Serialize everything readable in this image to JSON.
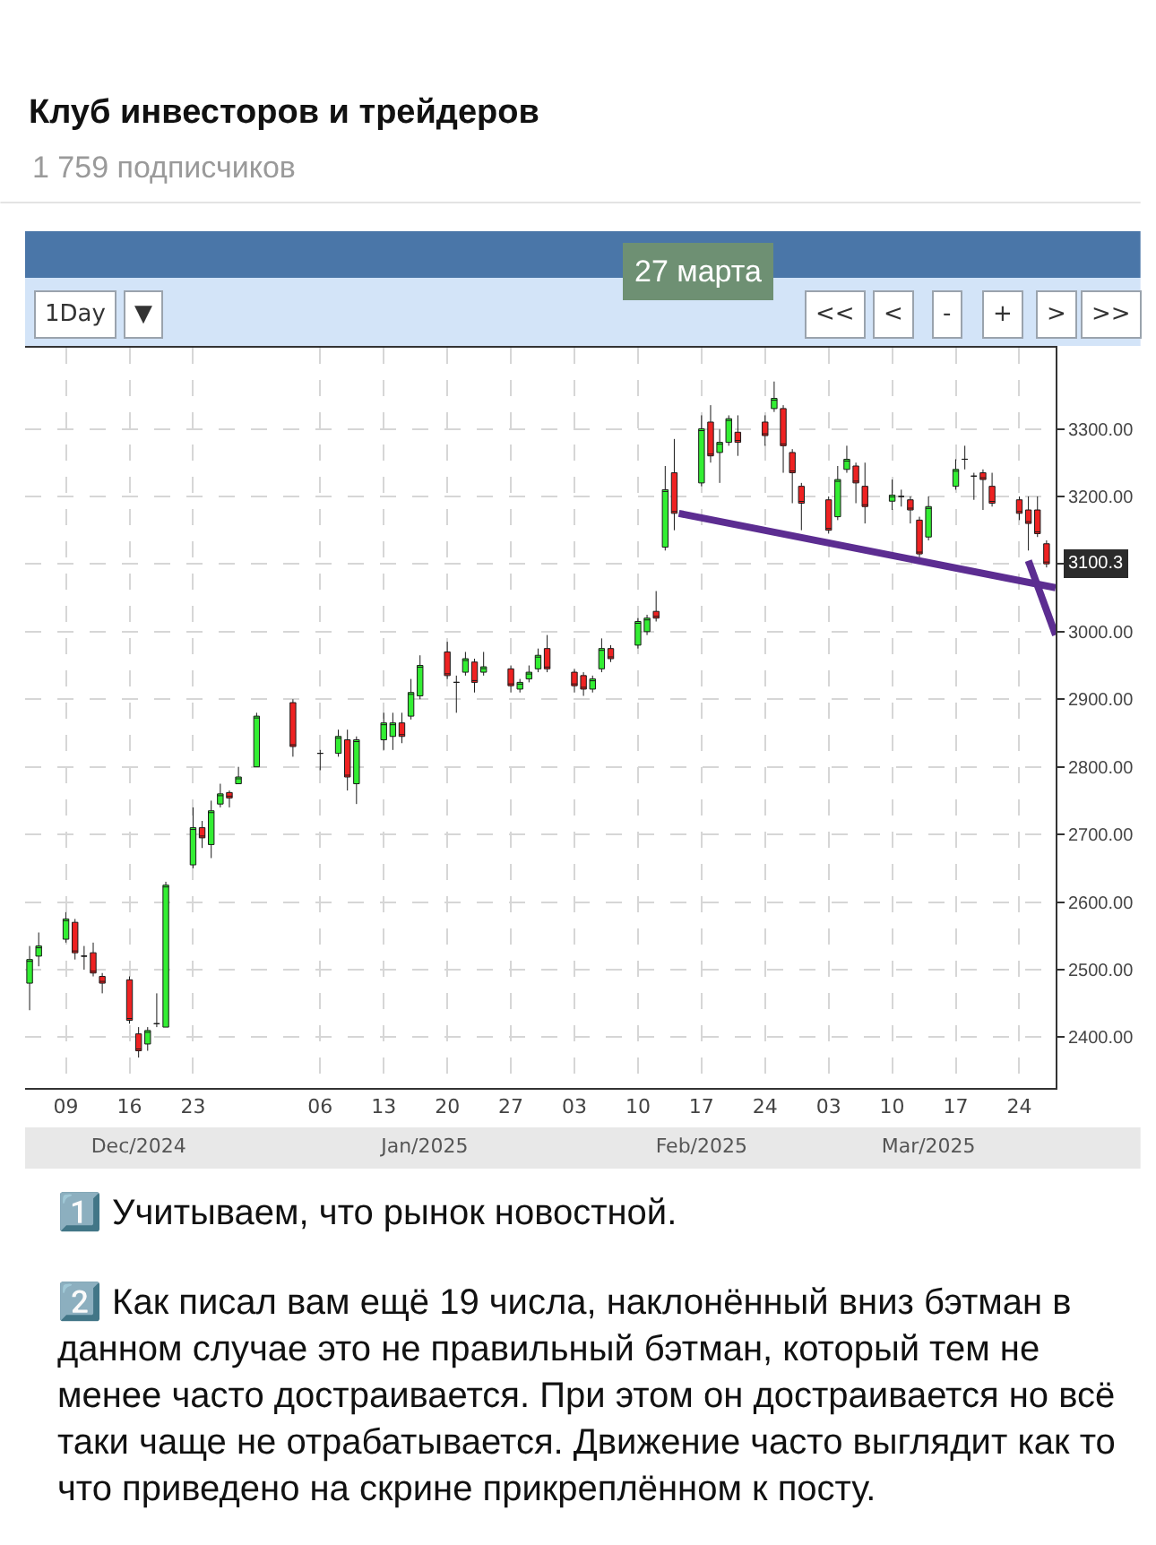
{
  "chart_data": {
    "type": "candlestick",
    "title": "Клуб инвесторов и трейдеров",
    "subtitle": "1 759 подписчиков",
    "x": [
      "2024-12-05",
      "2024-12-06",
      "2024-12-09",
      "2024-12-10",
      "2024-12-11",
      "2024-12-12",
      "2024-12-13",
      "2024-12-16",
      "2024-12-17",
      "2024-12-18",
      "2024-12-19",
      "2024-12-20",
      "2024-12-23",
      "2024-12-24",
      "2024-12-25",
      "2024-12-26",
      "2024-12-27",
      "2024-12-28",
      "2024-12-30",
      "2025-01-03",
      "2025-01-06",
      "2025-01-08",
      "2025-01-09",
      "2025-01-10",
      "2025-01-13",
      "2025-01-14",
      "2025-01-15",
      "2025-01-16",
      "2025-01-17",
      "2025-01-20",
      "2025-01-21",
      "2025-01-22",
      "2025-01-23",
      "2025-01-24",
      "2025-01-27",
      "2025-01-28",
      "2025-01-29",
      "2025-01-30",
      "2025-01-31",
      "2025-02-03",
      "2025-02-04",
      "2025-02-05",
      "2025-02-06",
      "2025-02-07",
      "2025-02-10",
      "2025-02-11",
      "2025-02-12",
      "2025-02-13",
      "2025-02-14",
      "2025-02-17",
      "2025-02-18",
      "2025-02-19",
      "2025-02-20",
      "2025-02-21",
      "2025-02-24",
      "2025-02-25",
      "2025-02-26",
      "2025-02-27",
      "2025-02-28",
      "2025-03-03",
      "2025-03-04",
      "2025-03-05",
      "2025-03-06",
      "2025-03-07",
      "2025-03-10",
      "2025-03-11",
      "2025-03-12",
      "2025-03-13",
      "2025-03-14",
      "2025-03-17",
      "2025-03-18",
      "2025-03-19",
      "2025-03-20",
      "2025-03-21",
      "2025-03-24",
      "2025-03-25",
      "2025-03-26",
      "2025-03-27"
    ],
    "ohlc": [
      [
        2480,
        2535,
        2440,
        2515
      ],
      [
        2520,
        2555,
        2505,
        2535
      ],
      [
        2545,
        2585,
        2540,
        2575
      ],
      [
        2570,
        2575,
        2515,
        2525
      ],
      [
        2520,
        2535,
        2500,
        2520
      ],
      [
        2525,
        2540,
        2490,
        2495
      ],
      [
        2490,
        2495,
        2465,
        2480
      ],
      [
        2485,
        2490,
        2420,
        2425
      ],
      [
        2405,
        2415,
        2370,
        2380
      ],
      [
        2390,
        2415,
        2380,
        2410
      ],
      [
        2420,
        2465,
        2415,
        2420
      ],
      [
        2415,
        2630,
        2415,
        2625
      ],
      [
        2655,
        2740,
        2650,
        2710
      ],
      [
        2710,
        2720,
        2680,
        2695
      ],
      [
        2685,
        2750,
        2665,
        2735
      ],
      [
        2745,
        2775,
        2740,
        2760
      ],
      [
        2762,
        2765,
        2740,
        2754
      ],
      [
        2775,
        2800,
        2775,
        2785
      ],
      [
        2800,
        2880,
        2800,
        2875
      ],
      [
        2895,
        2900,
        2815,
        2830
      ],
      [
        2820,
        2825,
        2795,
        2820
      ],
      [
        2820,
        2855,
        2815,
        2845
      ],
      [
        2840,
        2855,
        2765,
        2785
      ],
      [
        2775,
        2845,
        2745,
        2840
      ],
      [
        2840,
        2880,
        2825,
        2865
      ],
      [
        2845,
        2880,
        2825,
        2865
      ],
      [
        2865,
        2880,
        2835,
        2845
      ],
      [
        2875,
        2930,
        2870,
        2910
      ],
      [
        2905,
        2965,
        2900,
        2950
      ],
      [
        2970,
        2985,
        2930,
        2935
      ],
      [
        2925,
        2935,
        2880,
        2925
      ],
      [
        2940,
        2970,
        2935,
        2960
      ],
      [
        2955,
        2960,
        2910,
        2925
      ],
      [
        2940,
        2970,
        2935,
        2948
      ],
      [
        2945,
        2950,
        2910,
        2920
      ],
      [
        2915,
        2930,
        2910,
        2925
      ],
      [
        2930,
        2950,
        2925,
        2940
      ],
      [
        2945,
        2975,
        2940,
        2965
      ],
      [
        2975,
        2995,
        2940,
        2945
      ],
      [
        2940,
        2945,
        2910,
        2920
      ],
      [
        2935,
        2940,
        2905,
        2915
      ],
      [
        2915,
        2935,
        2910,
        2930
      ],
      [
        2945,
        2990,
        2940,
        2975
      ],
      [
        2975,
        2980,
        2955,
        2960
      ],
      [
        2980,
        3020,
        2975,
        3015
      ],
      [
        3000,
        3025,
        2995,
        3020
      ],
      [
        3030,
        3060,
        3015,
        3020
      ],
      [
        3125,
        3245,
        3120,
        3210
      ],
      [
        3235,
        3285,
        3150,
        3175
      ],
      [
        3220,
        3320,
        3215,
        3300
      ],
      [
        3310,
        3335,
        3250,
        3260
      ],
      [
        3265,
        3300,
        3220,
        3280
      ],
      [
        3280,
        3320,
        3275,
        3315
      ],
      [
        3295,
        3320,
        3260,
        3280
      ],
      [
        3310,
        3320,
        3275,
        3290
      ],
      [
        3330,
        3370,
        3325,
        3345
      ],
      [
        3330,
        3335,
        3235,
        3275
      ],
      [
        3265,
        3270,
        3190,
        3235
      ],
      [
        3215,
        3220,
        3150,
        3190
      ],
      [
        3195,
        3200,
        3145,
        3150
      ],
      [
        3170,
        3245,
        3165,
        3225
      ],
      [
        3240,
        3275,
        3235,
        3255
      ],
      [
        3245,
        3250,
        3190,
        3220
      ],
      [
        3215,
        3250,
        3160,
        3185
      ],
      [
        3193,
        3225,
        3180,
        3202
      ],
      [
        3200,
        3210,
        3185,
        3200
      ],
      [
        3195,
        3200,
        3160,
        3180
      ],
      [
        3165,
        3170,
        3110,
        3115
      ],
      [
        3140,
        3200,
        3135,
        3185
      ],
      [
        3215,
        3255,
        3210,
        3240
      ],
      [
        3255,
        3275,
        3240,
        3255
      ],
      [
        3230,
        3235,
        3195,
        3230
      ],
      [
        3235,
        3240,
        3180,
        3225
      ],
      [
        3215,
        3235,
        3185,
        3190
      ],
      [
        3195,
        3200,
        3165,
        3175
      ],
      [
        3180,
        3200,
        3120,
        3160
      ],
      [
        3180,
        3200,
        3140,
        3145
      ],
      [
        3130,
        3135,
        3095,
        3100.3
      ]
    ],
    "colors": [
      "#33ee33",
      "#33ee33",
      "#33ee33",
      "#ee2222",
      "#1a1a1a",
      "#ee2222",
      "#ee2222",
      "#ee2222",
      "#ee2222",
      "#33ee33",
      "#1a1a1a",
      "#33ee33",
      "#33ee33",
      "#ee2222",
      "#33ee33",
      "#33ee33",
      "#ee2222",
      "#33ee33",
      "#33ee33",
      "#ee2222",
      "#1a1a1a",
      "#33ee33",
      "#ee2222",
      "#33ee33",
      "#33ee33",
      "#33ee33",
      "#ee2222",
      "#33ee33",
      "#33ee33",
      "#ee2222",
      "#1a1a1a",
      "#33ee33",
      "#ee2222",
      "#33ee33",
      "#ee2222",
      "#33ee33",
      "#33ee33",
      "#33ee33",
      "#ee2222",
      "#ee2222",
      "#ee2222",
      "#33ee33",
      "#33ee33",
      "#ee2222",
      "#33ee33",
      "#33ee33",
      "#ee2222",
      "#33ee33",
      "#ee2222",
      "#33ee33",
      "#ee2222",
      "#33ee33",
      "#33ee33",
      "#ee2222",
      "#ee2222",
      "#33ee33",
      "#ee2222",
      "#ee2222",
      "#ee2222",
      "#ee2222",
      "#33ee33",
      "#33ee33",
      "#ee2222",
      "#ee2222",
      "#33ee33",
      "#1a1a1a",
      "#ee2222",
      "#ee2222",
      "#33ee33",
      "#33ee33",
      "#1a1a1a",
      "#1a1a1a",
      "#ee2222",
      "#ee2222",
      "#ee2222",
      "#ee2222",
      "#ee2222",
      "#ee2222"
    ],
    "series": [
      {
        "type": "line",
        "color": "#5c2d91",
        "x": [
          "2025-02-14T12:00",
          "2025-03-28"
        ],
        "values": [
          3175,
          3065
        ]
      },
      {
        "type": "line",
        "color": "#5c2d91",
        "x": [
          "2025-03-25",
          "2025-03-28"
        ],
        "values": [
          3105,
          2995
        ]
      }
    ],
    "xlim": [
      "2024-12-04T12:00",
      "2025-03-28"
    ],
    "xticks": [
      {
        "value": "2024-12-09",
        "label": "09"
      },
      {
        "value": "2024-12-16",
        "label": "16"
      },
      {
        "value": "2024-12-23",
        "label": "23"
      },
      {
        "value": "2025-01-06",
        "label": "06"
      },
      {
        "value": "2025-01-13",
        "label": "13"
      },
      {
        "value": "2025-01-20",
        "label": "20"
      },
      {
        "value": "2025-01-27",
        "label": "27"
      },
      {
        "value": "2025-02-03",
        "label": "03"
      },
      {
        "value": "2025-02-10",
        "label": "10"
      },
      {
        "value": "2025-02-17",
        "label": "17"
      },
      {
        "value": "2025-02-24",
        "label": "24"
      },
      {
        "value": "2025-03-03",
        "label": "03"
      },
      {
        "value": "2025-03-10",
        "label": "10"
      },
      {
        "value": "2025-03-17",
        "label": "17"
      },
      {
        "value": "2025-03-24",
        "label": "24"
      }
    ],
    "x2lim": [
      "2024-12-04T12:00",
      "2025-03-28"
    ],
    "x2ticks": [
      {
        "value": "2024-12-17",
        "label": "Dec/2024"
      },
      {
        "value": "2025-01-17T12:00",
        "label": "Jan/2025"
      },
      {
        "value": "2025-02-17",
        "label": "Feb/2025"
      },
      {
        "value": "2025-03-14",
        "label": "Mar/2025"
      }
    ],
    "ylim": [
      2325,
      3420
    ],
    "yticks": [
      {
        "value": 2400,
        "label": "2400.00"
      },
      {
        "value": 2500,
        "label": "2500.00"
      },
      {
        "value": 2600,
        "label": "2600.00"
      },
      {
        "value": 2700,
        "label": "2700.00"
      },
      {
        "value": 2800,
        "label": "2800.00"
      },
      {
        "value": 2900,
        "label": "2900.00"
      },
      {
        "value": 3000,
        "label": "3000.00"
      },
      {
        "value": 3100,
        "label": null
      },
      {
        "value": 3200,
        "label": "3200.00"
      },
      {
        "value": 3300,
        "label": "3300.00"
      }
    ],
    "grid": true,
    "annotations": [
      "27 марта",
      "1Day",
      "▼",
      "<<",
      "<",
      "-",
      "+",
      ">",
      ">>",
      {
        "text": "3100.3",
        "x": "2025-03-27",
        "y": 3100.3
      },
      "1️⃣ Учитываем, что рынок новостной.",
      "2️⃣ Как писал вам ещё 19 числа, наклонённый вниз бэтман в данном случае это не правильный бэтман, который тем не менее часто достраивается. При этом он достраивается но всё таки чаще не отрабатывается. Движение часто выглядит как то что приведено на скрине прикреплённом к посту."
    ]
  }
}
